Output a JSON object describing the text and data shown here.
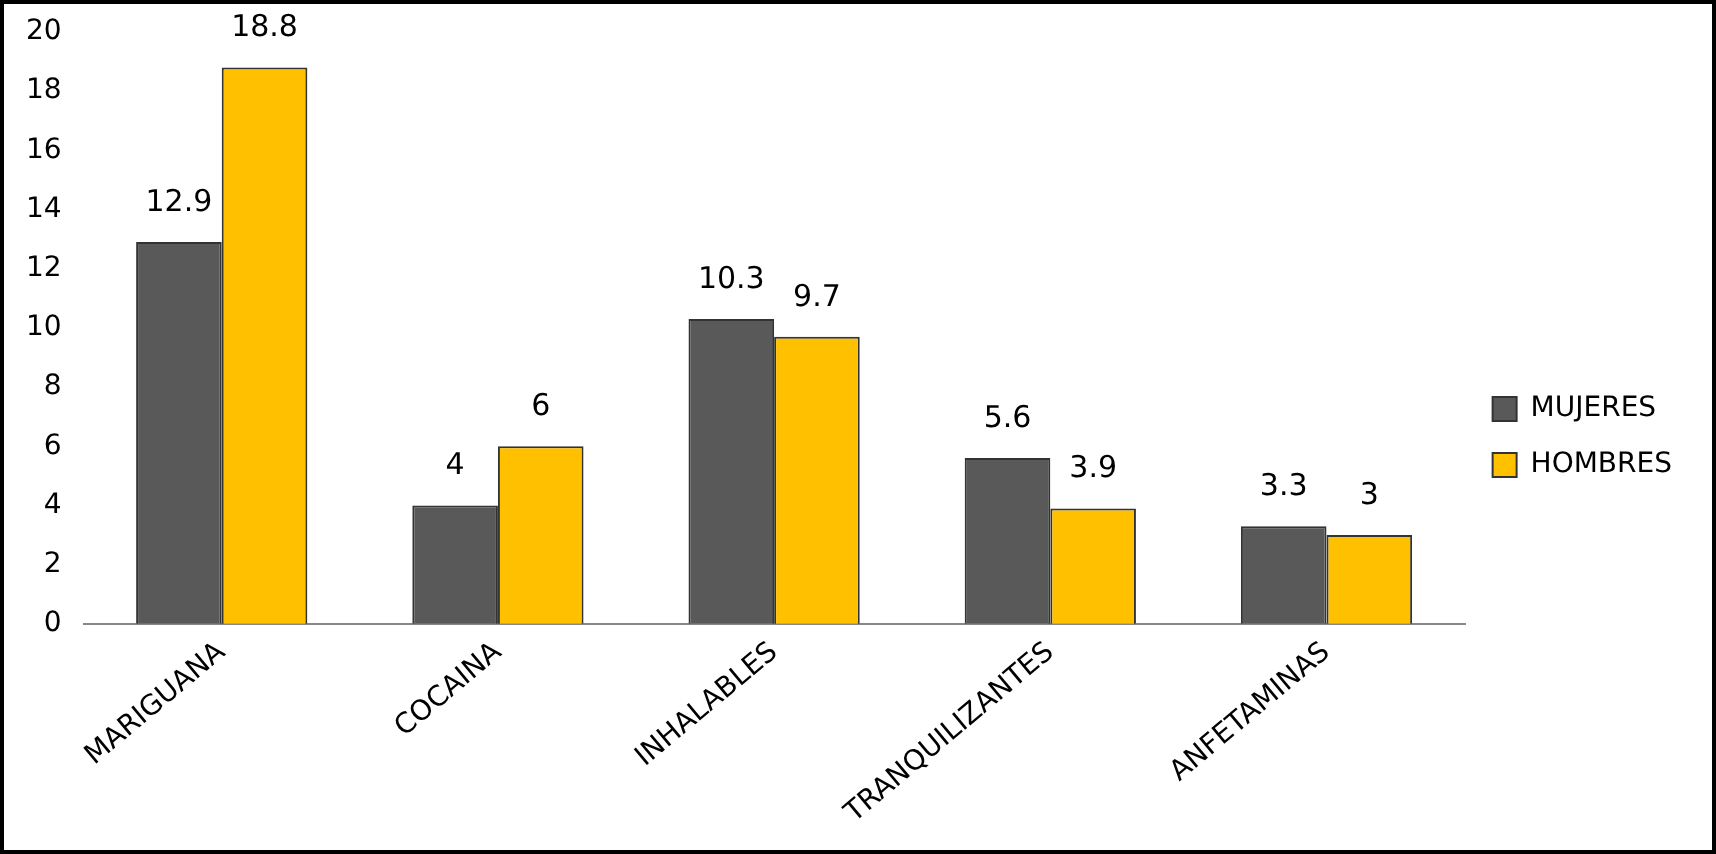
{
  "chart_data": {
    "type": "bar",
    "categories": [
      "MARIGUANA",
      "COCAINA",
      "INHALABLES",
      "TRANQUILIZANTES",
      "ANFETAMINAS"
    ],
    "series": [
      {
        "name": "MUJERES",
        "color": "#595959",
        "values": [
          12.9,
          4,
          10.3,
          5.6,
          3.3
        ]
      },
      {
        "name": "HOMBRES",
        "color": "#ffc000",
        "values": [
          18.8,
          6,
          9.7,
          3.9,
          3
        ]
      }
    ],
    "ylim": [
      0,
      20
    ],
    "yticks": [
      0,
      2,
      4,
      6,
      8,
      10,
      12,
      14,
      16,
      18,
      20
    ],
    "grid": false,
    "legend": "right",
    "data_labels": true
  }
}
